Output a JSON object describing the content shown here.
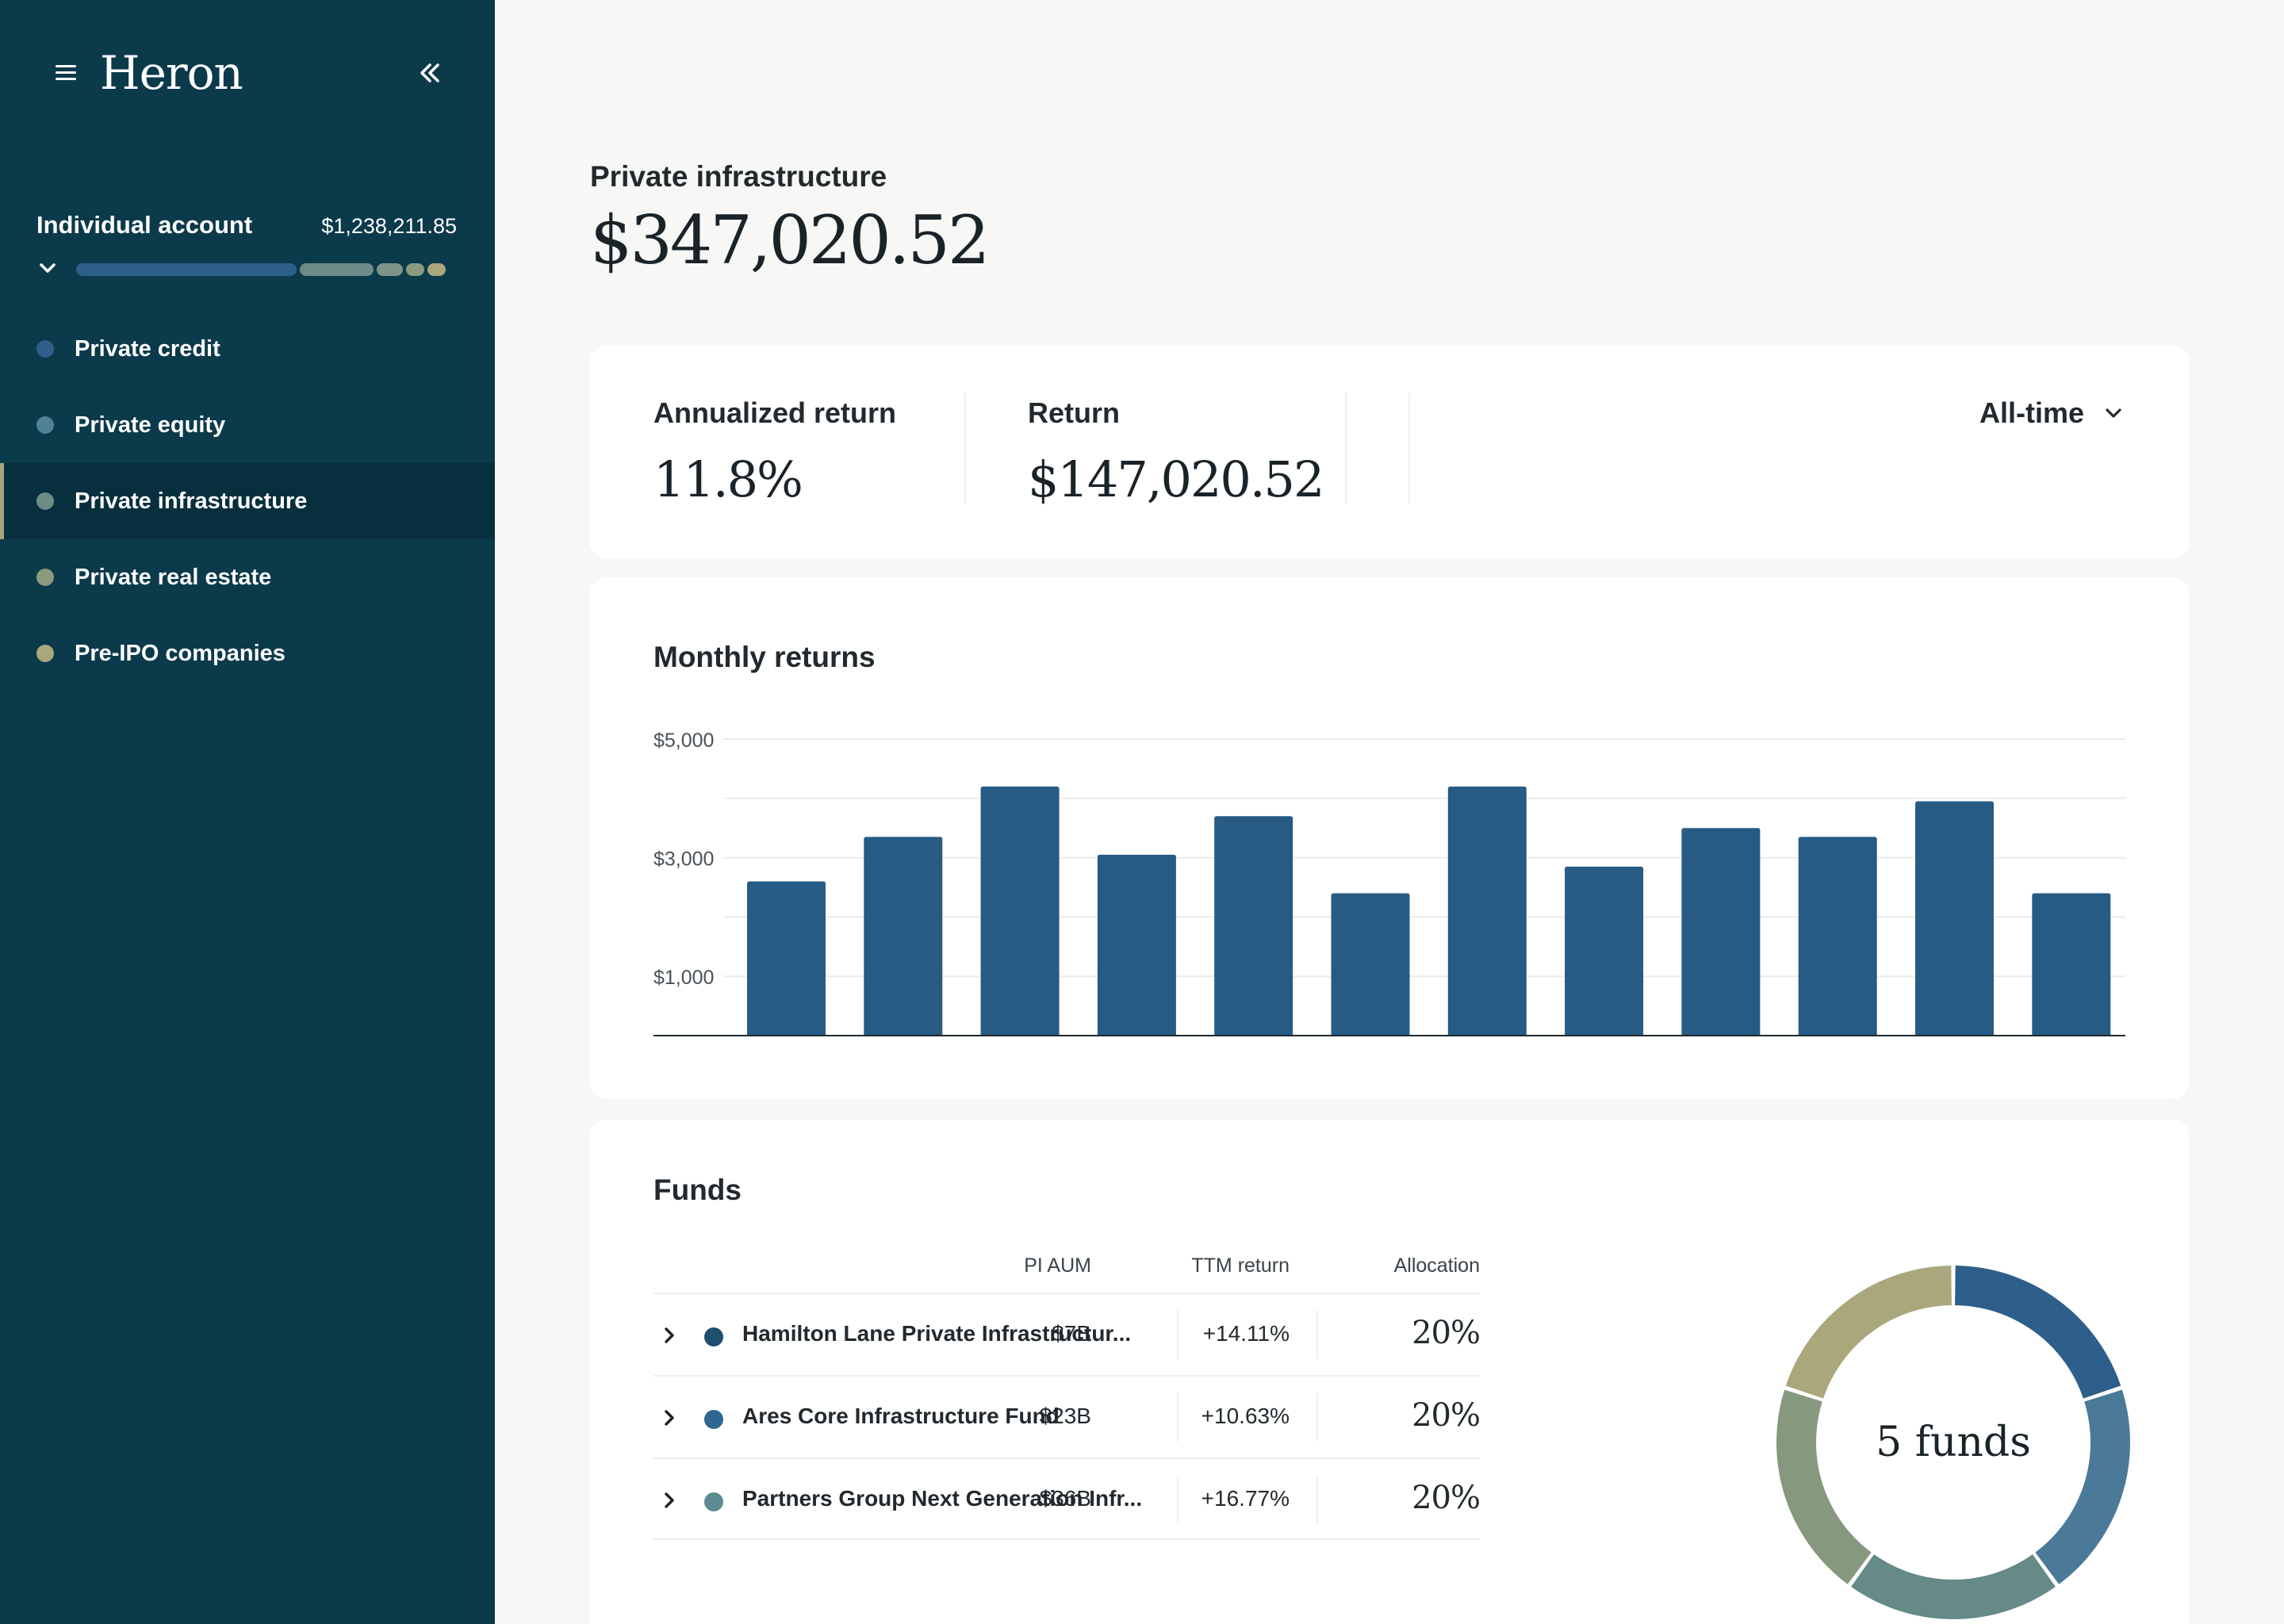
{
  "app": {
    "brand": "Heron"
  },
  "colors": {
    "sidebar_bg": "#0b3a4b",
    "bar": "#275b84",
    "private_credit": "#2e5f8a",
    "private_equity": "#4f8296",
    "private_infrastructure": "#6e8c86",
    "private_real_estate": "#8b9a7c",
    "pre_ipo": "#aaa77c"
  },
  "account": {
    "name": "Individual account",
    "total": "$1,238,211.85",
    "allocation": [
      {
        "color": "#2e5f8a",
        "fraction": 0.6
      },
      {
        "color": "#6e8c86",
        "fraction": 0.2
      },
      {
        "color": "#7f9487",
        "fraction": 0.07
      },
      {
        "color": "#8b9a7c",
        "fraction": 0.05
      },
      {
        "color": "#aaa77c",
        "fraction": 0.05
      }
    ]
  },
  "nav": {
    "items": [
      {
        "label": "Private credit",
        "color": "#2e5f8a"
      },
      {
        "label": "Private equity",
        "color": "#4f8296"
      },
      {
        "label": "Private infrastructure",
        "color": "#6e8c86"
      },
      {
        "label": "Private real estate",
        "color": "#8b9a7c"
      },
      {
        "label": "Pre-IPO companies",
        "color": "#aaa77c"
      }
    ]
  },
  "page": {
    "subtitle": "Private infrastructure",
    "title": "$347,020.52"
  },
  "stats": {
    "annualized_label": "Annualized return",
    "annualized_value": "11.8%",
    "return_label": "Return",
    "return_value": "$147,020.52",
    "period": "All-time"
  },
  "monthly": {
    "title": "Monthly returns"
  },
  "chart_data": {
    "type": "bar",
    "title": "Monthly returns",
    "xlabel": "",
    "ylabel": "",
    "ylim": [
      0,
      5000
    ],
    "yticks": [
      {
        "value": 5000,
        "label": "$5,000"
      },
      {
        "value": 3000,
        "label": "$3,000"
      },
      {
        "value": 1000,
        "label": "$1,000"
      }
    ],
    "gridlines": [
      5000,
      4000,
      3000,
      2000,
      1000
    ],
    "values": [
      2600,
      3350,
      4200,
      3050,
      3700,
      2400,
      4200,
      2850,
      3500,
      3350,
      3950,
      2400
    ]
  },
  "funds": {
    "title": "Funds",
    "columns": {
      "aum": "PI AUM",
      "ttm": "TTM return",
      "allocation": "Allocation"
    },
    "rows": [
      {
        "name": "Hamilton Lane Private Infrastructur...",
        "aum": "$7B",
        "ttm": "+14.11%",
        "allocation": "20%",
        "color": "#1d4f70"
      },
      {
        "name": "Ares Core Infrastructure Fund",
        "aum": "$23B",
        "ttm": "+10.63%",
        "allocation": "20%",
        "color": "#2e6790"
      },
      {
        "name": "Partners Group Next Generation Infr...",
        "aum": "$36B",
        "ttm": "+16.77%",
        "allocation": "20%",
        "color": "#5b8a92"
      }
    ],
    "donut_label": "5 funds",
    "donut": [
      {
        "fraction": 0.2,
        "color": "#2e5f8a"
      },
      {
        "fraction": 0.2,
        "color": "#4a7a98"
      },
      {
        "fraction": 0.2,
        "color": "#658a88"
      },
      {
        "fraction": 0.2,
        "color": "#86987e"
      },
      {
        "fraction": 0.2,
        "color": "#aaa77c"
      }
    ]
  }
}
